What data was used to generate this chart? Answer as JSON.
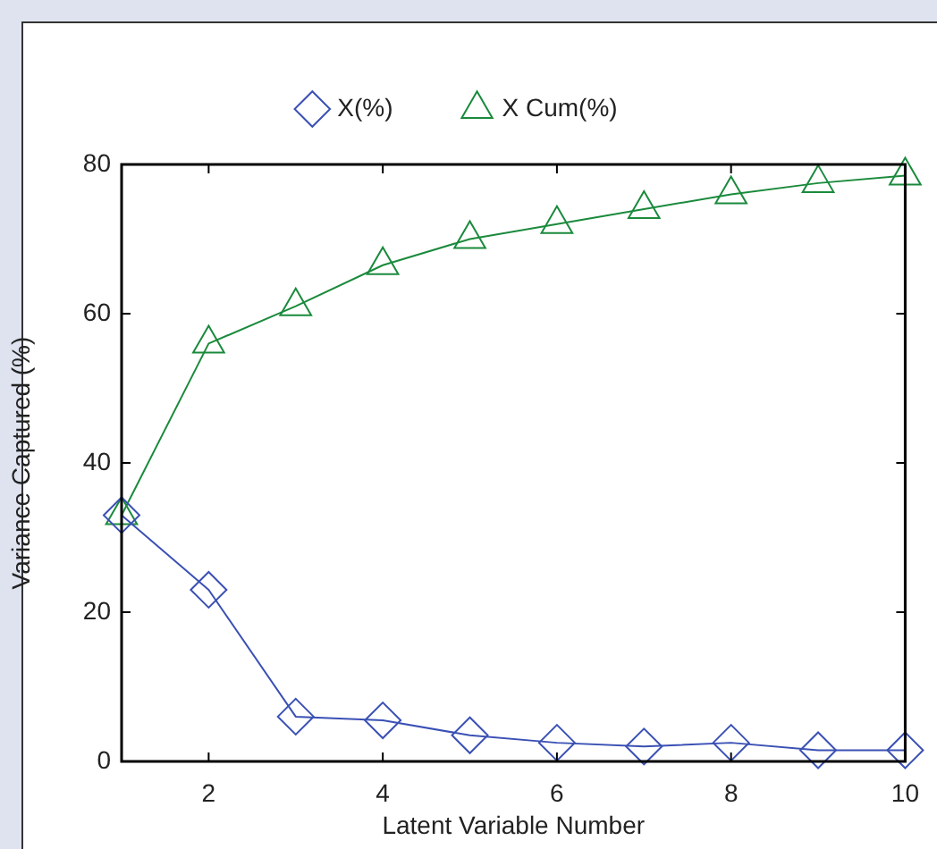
{
  "chart_data": {
    "type": "line",
    "xlabel": "Latent Variable Number",
    "ylabel": "Variance Captured (%)",
    "x": [
      1,
      2,
      3,
      4,
      5,
      6,
      7,
      8,
      9,
      10
    ],
    "series": [
      {
        "name": "X(%)",
        "color": "#3a50b4",
        "marker": "diamond",
        "values": [
          33,
          23,
          6,
          5.5,
          3.5,
          2.5,
          2,
          2.5,
          1.5,
          1.5
        ]
      },
      {
        "name": "X Cum(%)",
        "color": "#1a8a3c",
        "marker": "triangle",
        "values": [
          33,
          56,
          61,
          66.5,
          70,
          72,
          74,
          76,
          77.5,
          78.5
        ]
      }
    ],
    "xlim": [
      1,
      10
    ],
    "xticks": [
      2,
      4,
      6,
      8,
      10
    ],
    "ylim": [
      0,
      80
    ],
    "yticks": [
      0,
      20,
      40,
      60,
      80
    ],
    "legend": "top",
    "line_style": "solid"
  }
}
